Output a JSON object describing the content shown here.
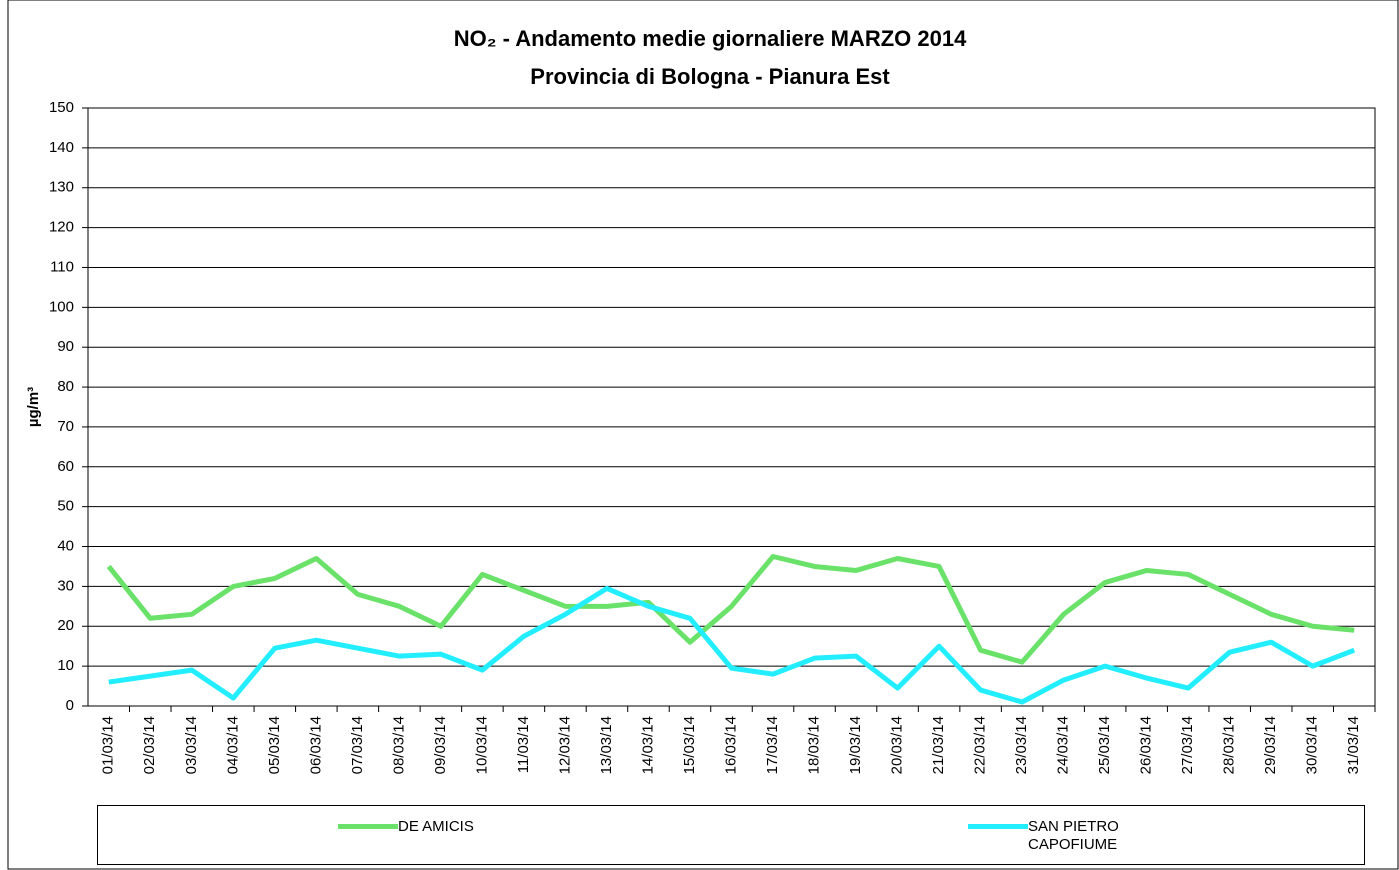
{
  "chart_data": {
    "type": "line",
    "title": "NO₂ - Andamento medie giornaliere MARZO 2014",
    "subtitle": "Provincia di Bologna - Pianura Est",
    "y_label": "µg/m³",
    "categories": [
      "01/03/14",
      "02/03/14",
      "03/03/14",
      "04/03/14",
      "05/03/14",
      "06/03/14",
      "07/03/14",
      "08/03/14",
      "09/03/14",
      "10/03/14",
      "11/03/14",
      "12/03/14",
      "13/03/14",
      "14/03/14",
      "15/03/14",
      "16/03/14",
      "17/03/14",
      "18/03/14",
      "19/03/14",
      "20/03/14",
      "21/03/14",
      "22/03/14",
      "23/03/14",
      "24/03/14",
      "25/03/14",
      "26/03/14",
      "27/03/14",
      "28/03/14",
      "29/03/14",
      "30/03/14",
      "31/03/14"
    ],
    "series": [
      {
        "name": "DE AMICIS",
        "color": "#6ae26a",
        "values": [
          35,
          22,
          23,
          30,
          32,
          37,
          28,
          25,
          20,
          33,
          29,
          25,
          25,
          26,
          16,
          25,
          37.5,
          35,
          34,
          37,
          35,
          14,
          11,
          23,
          31,
          34,
          33,
          28,
          23,
          20,
          19
        ]
      },
      {
        "name": "SAN PIETRO CAPOFIUME",
        "color": "#22eeff",
        "values": [
          6,
          7.5,
          9,
          2,
          14.5,
          16.5,
          14.5,
          12.5,
          13,
          9,
          17.5,
          23,
          29.5,
          25,
          22,
          9.5,
          8,
          12,
          12.5,
          4.5,
          15,
          4,
          1,
          6.5,
          10,
          7,
          4.5,
          13.5,
          16,
          10,
          14
        ]
      }
    ],
    "ylim": [
      0,
      150
    ],
    "yticks": [
      0,
      10,
      20,
      30,
      40,
      50,
      60,
      70,
      80,
      90,
      100,
      110,
      120,
      130,
      140,
      150
    ],
    "grid": true
  }
}
